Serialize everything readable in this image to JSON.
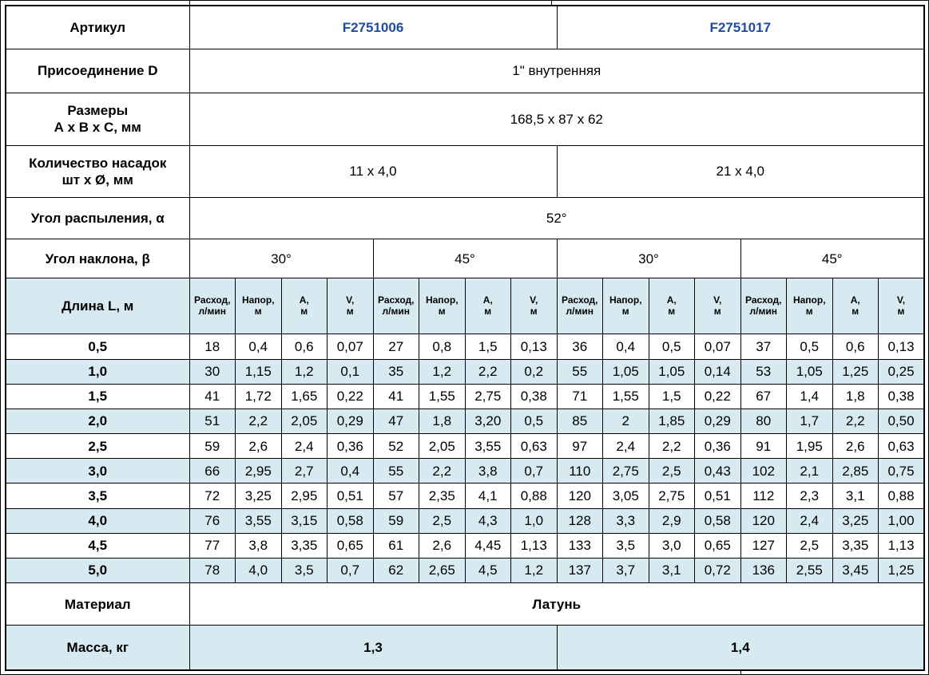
{
  "colors": {
    "accent_blue": "#1E4CA1",
    "stripe_blue": "#D7EAF1",
    "border": "#000000"
  },
  "spec": {
    "article": {
      "label": "Артикул",
      "values": [
        "F2751006",
        "F2751017"
      ]
    },
    "connection": {
      "label": "Присоединение D",
      "value": "1\" внутренняя"
    },
    "dimensions": {
      "label_line1": "Размеры",
      "label_line2": "А х В х С, мм",
      "value": "168,5 х 87 х 62"
    },
    "nozzles": {
      "label_line1": "Количество насадок",
      "label_line2": "шт х Ø, мм",
      "values": [
        "11 х 4,0",
        "21 х 4,0"
      ]
    },
    "spray_angle": {
      "label": "Угол распыления, α",
      "value": "52°"
    },
    "tilt_angle": {
      "label": "Угол наклона, β",
      "values": [
        "30°",
        "45°",
        "30°",
        "45°"
      ]
    },
    "material": {
      "label": "Материал",
      "value": "Латунь"
    },
    "mass": {
      "label": "Масса, кг",
      "values": [
        "1,3",
        "1,4"
      ]
    }
  },
  "table": {
    "length_label": "Длина L, м",
    "subheaders": [
      {
        "line1": "Расход,",
        "line2": "л/мин"
      },
      {
        "line1": "Напор,",
        "line2": "м"
      },
      {
        "line1": "А,",
        "line2": "м"
      },
      {
        "line1": "V,",
        "line2": "м"
      }
    ],
    "rows": [
      {
        "length": "0,5",
        "values": [
          "18",
          "0,4",
          "0,6",
          "0,07",
          "27",
          "0,8",
          "1,5",
          "0,13",
          "36",
          "0,4",
          "0,5",
          "0,07",
          "37",
          "0,5",
          "0,6",
          "0,13"
        ]
      },
      {
        "length": "1,0",
        "values": [
          "30",
          "1,15",
          "1,2",
          "0,1",
          "35",
          "1,2",
          "2,2",
          "0,2",
          "55",
          "1,05",
          "1,05",
          "0,14",
          "53",
          "1,05",
          "1,25",
          "0,25"
        ]
      },
      {
        "length": "1,5",
        "values": [
          "41",
          "1,72",
          "1,65",
          "0,22",
          "41",
          "1,55",
          "2,75",
          "0,38",
          "71",
          "1,55",
          "1,5",
          "0,22",
          "67",
          "1,4",
          "1,8",
          "0,38"
        ]
      },
      {
        "length": "2,0",
        "values": [
          "51",
          "2,2",
          "2,05",
          "0,29",
          "47",
          "1,8",
          "3,20",
          "0,5",
          "85",
          "2",
          "1,85",
          "0,29",
          "80",
          "1,7",
          "2,2",
          "0,50"
        ]
      },
      {
        "length": "2,5",
        "values": [
          "59",
          "2,6",
          "2,4",
          "0,36",
          "52",
          "2,05",
          "3,55",
          "0,63",
          "97",
          "2,4",
          "2,2",
          "0,36",
          "91",
          "1,95",
          "2,6",
          "0,63"
        ]
      },
      {
        "length": "3,0",
        "values": [
          "66",
          "2,95",
          "2,7",
          "0,4",
          "55",
          "2,2",
          "3,8",
          "0,7",
          "110",
          "2,75",
          "2,5",
          "0,43",
          "102",
          "2,1",
          "2,85",
          "0,75"
        ]
      },
      {
        "length": "3,5",
        "values": [
          "72",
          "3,25",
          "2,95",
          "0,51",
          "57",
          "2,35",
          "4,1",
          "0,88",
          "120",
          "3,05",
          "2,75",
          "0,51",
          "112",
          "2,3",
          "3,1",
          "0,88"
        ]
      },
      {
        "length": "4,0",
        "values": [
          "76",
          "3,55",
          "3,15",
          "0,58",
          "59",
          "2,5",
          "4,3",
          "1,0",
          "128",
          "3,3",
          "2,9",
          "0,58",
          "120",
          "2,4",
          "3,25",
          "1,00"
        ]
      },
      {
        "length": "4,5",
        "values": [
          "77",
          "3,8",
          "3,35",
          "0,65",
          "61",
          "2,6",
          "4,45",
          "1,13",
          "133",
          "3,5",
          "3,0",
          "0,65",
          "127",
          "2,5",
          "3,35",
          "1,13"
        ]
      },
      {
        "length": "5,0",
        "values": [
          "78",
          "4,0",
          "3,5",
          "0,7",
          "62",
          "2,65",
          "4,5",
          "1,2",
          "137",
          "3,7",
          "3,1",
          "0,72",
          "136",
          "2,55",
          "3,45",
          "1,25"
        ]
      }
    ]
  }
}
